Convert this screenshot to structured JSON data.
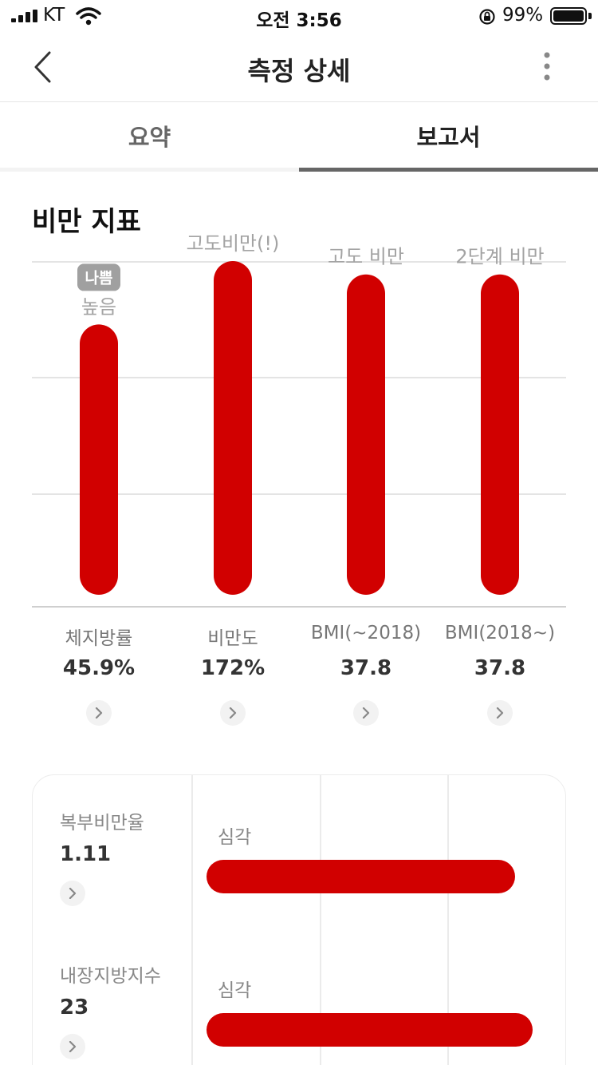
{
  "status_bar": {
    "carrier": "KT",
    "time": "오전 3:56",
    "battery": "99%"
  },
  "nav": {
    "title": "측정 상세",
    "back_icon": "chevron-left-icon",
    "more_icon": "more-vertical-icon"
  },
  "tabs": [
    {
      "label": "요약",
      "active": false
    },
    {
      "label": "보고서",
      "active": true
    }
  ],
  "section": {
    "title": "비만 지표"
  },
  "colors": {
    "bar": "#d10000",
    "badge": "#a0a0a0",
    "accent_line": "#666666"
  },
  "indicators": [
    {
      "name": "체지방률",
      "value": "45.9%",
      "tier": "높음",
      "badge": "나쁨",
      "level": 0.81
    },
    {
      "name": "비만도",
      "value": "172%",
      "tier": "고도비만(!)",
      "badge": "",
      "level": 1.0
    },
    {
      "name": "BMI(~2018)",
      "value": "37.8",
      "tier": "고도 비만",
      "badge": "",
      "level": 0.96
    },
    {
      "name": "BMI(2018~)",
      "value": "37.8",
      "tier": "2단계 비만",
      "badge": "",
      "level": 0.96
    }
  ],
  "card_rows": [
    {
      "name": "복부비만율",
      "value": "1.11",
      "status": "심각",
      "level": 0.9
    },
    {
      "name": "내장지방지수",
      "value": "23",
      "status": "심각",
      "level": 0.95
    }
  ]
}
